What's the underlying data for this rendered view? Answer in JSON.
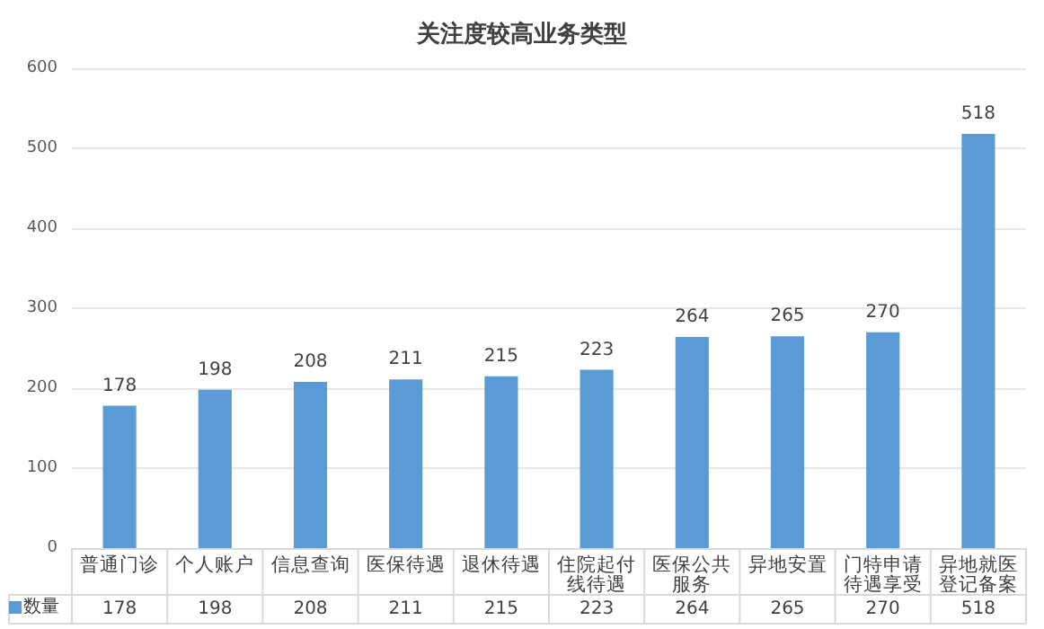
{
  "chart_data": {
    "type": "bar",
    "title": "关注度较高业务类型",
    "categories": [
      "普通门诊",
      "个人账户",
      "信息查询",
      "医保待遇",
      "退休待遇",
      "住院起付线待遇",
      "医保公共服务",
      "异地安置",
      "门特申请待遇享受",
      "异地就医登记备案"
    ],
    "series": [
      {
        "name": "数量",
        "color": "#5b9bd5",
        "values": [
          178,
          198,
          208,
          211,
          215,
          223,
          264,
          265,
          270,
          518
        ]
      }
    ],
    "annotations": [
      "178",
      "198",
      "208",
      "211",
      "215",
      "223",
      "264",
      "265",
      "270",
      "518"
    ],
    "ylim": [
      0,
      600
    ],
    "yticks": [
      0,
      100,
      200,
      300,
      400,
      500,
      600
    ],
    "grid": "y",
    "data_labels": true,
    "legend": "bottom left"
  }
}
